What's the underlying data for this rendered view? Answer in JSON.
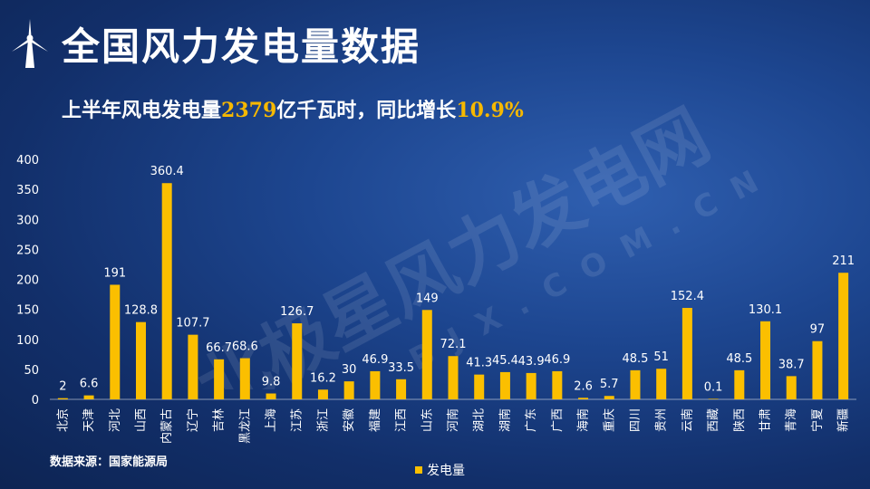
{
  "title": "全国风力发电量数据",
  "subtitle": {
    "prefix": "上半年风电发电量",
    "amount": "2379",
    "middle": "亿千瓦时，同比增长",
    "growth": "10.9%"
  },
  "source": "数据来源：国家能源局",
  "watermark": {
    "brand": "北极星风力发电网",
    "domain": "BJX.COM.CN"
  },
  "colors": {
    "bar": "#fbbf00",
    "highlight": "#f6b800",
    "text": "#ffffff"
  },
  "chart_data": {
    "type": "bar",
    "ylim": [
      0,
      400
    ],
    "yticks": [
      0,
      50,
      100,
      150,
      200,
      250,
      300,
      350,
      400
    ],
    "grid": false,
    "legend_position": "bottom",
    "categories": [
      "北京",
      "天津",
      "河北",
      "山西",
      "内蒙古",
      "辽宁",
      "吉林",
      "黑龙江",
      "上海",
      "江苏",
      "浙江",
      "安徽",
      "福建",
      "江西",
      "山东",
      "河南",
      "湖北",
      "湖南",
      "广东",
      "广西",
      "海南",
      "重庆",
      "四川",
      "贵州",
      "云南",
      "西藏",
      "陕西",
      "甘肃",
      "青海",
      "宁夏",
      "新疆"
    ],
    "series": [
      {
        "name": "发电量",
        "values": [
          2,
          6.6,
          191,
          128.8,
          360.4,
          107.7,
          66.7,
          68.6,
          9.8,
          126.7,
          16.2,
          30,
          46.9,
          33.5,
          149,
          72.1,
          41.3,
          45.4,
          43.9,
          46.9,
          2.6,
          5.7,
          48.5,
          51,
          152.4,
          0.1,
          48.5,
          130.1,
          38.7,
          97,
          211
        ]
      }
    ]
  }
}
